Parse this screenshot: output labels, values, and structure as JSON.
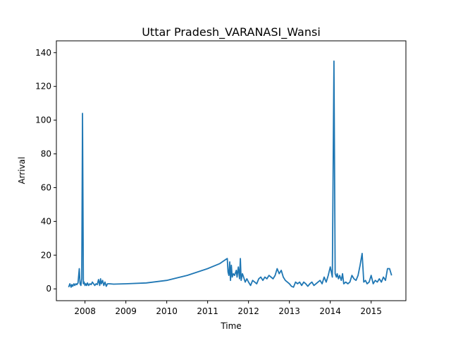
{
  "chart_data": {
    "type": "line",
    "title": "Uttar Pradesh_VARANASI_Wansi",
    "xlabel": "Time",
    "ylabel": "Arrival",
    "xlim": [
      2007.3,
      2015.85
    ],
    "ylim": [
      -7,
      147
    ],
    "x_ticks": [
      2008,
      2009,
      2010,
      2011,
      2012,
      2013,
      2014,
      2015
    ],
    "y_ticks": [
      0,
      20,
      40,
      60,
      80,
      100,
      120,
      140
    ],
    "grid": false,
    "line_color": "#1f77b4",
    "series": [
      {
        "x": [
          2007.6,
          2007.63,
          2007.66,
          2007.68,
          2007.7,
          2007.73,
          2007.75,
          2007.78,
          2007.8,
          2007.83,
          2007.86,
          2007.88,
          2007.9,
          2007.92,
          2007.94,
          2007.96,
          2007.98,
          2008.0,
          2008.02,
          2008.04,
          2008.06,
          2008.09,
          2008.12,
          2008.15,
          2008.18,
          2008.21,
          2008.24,
          2008.27,
          2008.3,
          2008.33,
          2008.36,
          2008.38,
          2008.4,
          2008.43,
          2008.46,
          2008.49,
          2008.52,
          2008.55,
          2008.6,
          2008.7,
          2009.0,
          2009.5,
          2010.0,
          2010.5,
          2011.0,
          2011.3,
          2011.45,
          2011.48,
          2011.5,
          2011.52,
          2011.54,
          2011.56,
          2011.58,
          2011.6,
          2011.63,
          2011.66,
          2011.7,
          2011.72,
          2011.75,
          2011.78,
          2011.8,
          2011.82,
          2011.85,
          2011.88,
          2011.92,
          2011.96,
          2012.0,
          2012.05,
          2012.1,
          2012.15,
          2012.2,
          2012.25,
          2012.3,
          2012.35,
          2012.4,
          2012.45,
          2012.5,
          2012.55,
          2012.6,
          2012.65,
          2012.7,
          2012.75,
          2012.8,
          2012.85,
          2012.9,
          2012.95,
          2013.0,
          2013.05,
          2013.1,
          2013.15,
          2013.2,
          2013.25,
          2013.3,
          2013.35,
          2013.4,
          2013.45,
          2013.5,
          2013.55,
          2013.6,
          2013.65,
          2013.7,
          2013.75,
          2013.8,
          2013.85,
          2013.9,
          2013.95,
          2014.0,
          2014.05,
          2014.09,
          2014.12,
          2014.15,
          2014.17,
          2014.2,
          2014.23,
          2014.27,
          2014.3,
          2014.33,
          2014.38,
          2014.43,
          2014.48,
          2014.53,
          2014.58,
          2014.63,
          2014.68,
          2014.73,
          2014.78,
          2014.82,
          2014.86,
          2014.9,
          2014.95,
          2015.0,
          2015.05,
          2015.1,
          2015.15,
          2015.2,
          2015.25,
          2015.3,
          2015.35,
          2015.4,
          2015.45,
          2015.5
        ],
        "y": [
          1,
          3,
          1,
          2.5,
          1.5,
          3,
          2,
          3,
          2.5,
          3.5,
          12,
          3,
          2,
          6,
          104,
          3,
          4,
          2,
          3,
          2,
          3.5,
          2,
          3,
          2.5,
          4,
          3,
          2,
          3,
          2.5,
          5.5,
          2,
          6,
          3,
          5,
          2,
          4,
          1.5,
          3,
          3,
          2.8,
          3,
          3.5,
          5,
          8,
          12,
          15,
          17.5,
          18,
          10,
          8,
          16,
          5,
          14,
          7,
          9,
          8,
          11,
          7,
          13,
          6,
          18,
          5,
          9,
          7,
          4,
          6,
          4,
          2,
          5,
          4,
          3,
          6,
          7,
          5,
          7,
          6,
          8,
          7,
          6,
          8,
          12,
          9,
          11,
          7,
          5,
          4,
          3,
          1.5,
          1,
          4,
          3,
          4,
          2,
          4,
          3,
          1.5,
          3,
          4,
          2,
          3,
          4,
          5,
          3,
          7,
          4,
          8,
          13,
          7,
          135,
          9,
          7,
          9,
          6,
          8,
          5,
          9,
          3,
          4,
          3,
          4,
          8,
          6,
          5,
          8,
          14,
          21,
          4,
          5,
          3,
          4,
          8,
          3,
          5,
          4,
          6,
          4,
          7,
          5,
          12,
          12,
          8
        ]
      }
    ]
  }
}
